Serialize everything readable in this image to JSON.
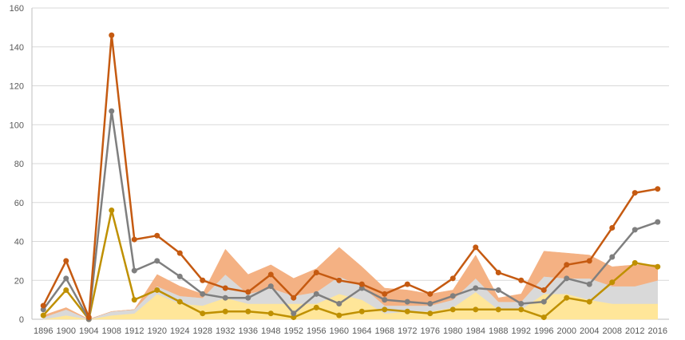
{
  "chart_data": {
    "type": "line",
    "title": "",
    "xlabel": "",
    "ylabel": "",
    "ylim": [
      0,
      160
    ],
    "yticks": [
      0,
      20,
      40,
      60,
      80,
      100,
      120,
      140,
      160
    ],
    "grid": true,
    "legend": "none",
    "x": [
      "1896",
      "1900",
      "1904",
      "1908",
      "1912",
      "1920",
      "1924",
      "1928",
      "1932",
      "1936",
      "1948",
      "1952",
      "1956",
      "1960",
      "1964",
      "1968",
      "1972",
      "1976",
      "1980",
      "1984",
      "1988",
      "1992",
      "1996",
      "2000",
      "2004",
      "2008",
      "2012",
      "2016"
    ],
    "series": [
      {
        "color": "#c55a11",
        "kind": "line",
        "values": [
          7,
          30,
          1,
          146,
          41,
          43,
          34,
          20,
          16,
          14,
          23,
          11,
          24,
          20,
          18,
          13,
          18,
          13,
          21,
          37,
          24,
          20,
          15,
          28,
          30,
          47,
          65,
          67
        ]
      },
      {
        "color": "#7f7f7f",
        "kind": "line",
        "values": [
          5,
          21,
          0,
          107,
          25,
          30,
          22,
          13,
          11,
          11,
          17,
          3,
          13,
          8,
          16,
          10,
          9,
          8,
          12,
          16,
          15,
          8,
          9,
          21,
          18,
          32,
          46,
          50
        ]
      },
      {
        "color": "#bf9000",
        "kind": "line",
        "values": [
          2,
          15,
          0,
          56,
          10,
          15,
          9,
          3,
          4,
          4,
          3,
          1,
          6,
          2,
          4,
          5,
          4,
          3,
          5,
          5,
          5,
          5,
          1,
          11,
          9,
          19,
          29,
          27
        ]
      },
      {
        "color": "#ffe699",
        "kind": "area",
        "values": [
          0,
          2,
          0,
          2,
          3,
          13,
          8,
          7,
          11,
          8,
          8,
          8,
          8,
          13,
          10,
          3,
          4,
          4,
          6,
          14,
          5,
          5,
          13,
          13,
          10,
          8,
          8,
          8
        ]
      },
      {
        "color": "#d9d9d9",
        "kind": "area",
        "values": [
          1,
          3,
          0,
          2,
          2,
          4,
          4,
          4,
          12,
          5,
          8,
          4,
          6,
          9,
          7,
          4,
          3,
          3,
          4,
          7,
          4,
          4,
          9,
          8,
          11,
          9,
          9,
          12
        ]
      },
      {
        "color": "#f4b183",
        "kind": "area",
        "values": [
          1,
          1,
          0,
          0,
          0,
          6,
          5,
          2,
          13,
          10,
          12,
          9,
          12,
          15,
          10,
          9,
          8,
          6,
          5,
          12,
          2,
          4,
          13,
          13,
          12,
          10,
          11,
          8
        ]
      }
    ]
  }
}
